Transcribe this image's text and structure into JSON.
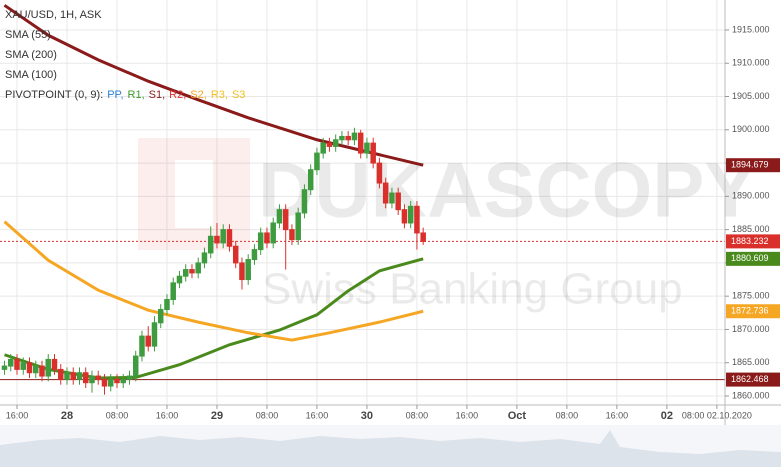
{
  "chart_data": {
    "type": "candlestick",
    "legend": {
      "instrument": "XAU/USD, 1H, ASK",
      "pivot_label": "PIVOTPOINT (0, 9):",
      "pivot_items": [
        {
          "text": "PP,",
          "color": "#2a7fd4"
        },
        {
          "text": "R1,",
          "color": "#3c9a2a"
        },
        {
          "text": "S1,",
          "color": "#8b1a1a"
        },
        {
          "text": "R2,",
          "color": "#e03030"
        },
        {
          "text": "S2,",
          "color": "#f5a623"
        },
        {
          "text": "R3,",
          "color": "#f0c020"
        },
        {
          "text": "S3",
          "color": "#f0c020"
        }
      ]
    },
    "watermark": {
      "brand": "DUKASCOPY",
      "tagline": "Swiss Banking Group"
    },
    "up_color": "#3f9b3f",
    "down_color": "#d9302c",
    "x": [
      -2,
      -1,
      0,
      1,
      2,
      3,
      4,
      5,
      6,
      7,
      8,
      9,
      10,
      11,
      12,
      13,
      14,
      15,
      16,
      17,
      18,
      19,
      20,
      21,
      22,
      23,
      24,
      25,
      26,
      27,
      28,
      29,
      30,
      31,
      32,
      33,
      34,
      35,
      36,
      37,
      38,
      39,
      40,
      41,
      42,
      43,
      44,
      45,
      46,
      47,
      48,
      49,
      50,
      51,
      52,
      53,
      54,
      55,
      56,
      57,
      58,
      59,
      60,
      61,
      62,
      63,
      64,
      65
    ],
    "open": [
      1864,
      1864.5,
      1865.5,
      1864,
      1865,
      1863.5,
      1864.5,
      1863,
      1865.5,
      1864,
      1862.5,
      1863.5,
      1862.5,
      1863.5,
      1862,
      1863,
      1862.5,
      1861.5,
      1862.5,
      1862,
      1862.5,
      1863,
      1866,
      1869,
      1867.5,
      1871,
      1873,
      1874.5,
      1877,
      1878,
      1879,
      1878.5,
      1880,
      1881.5,
      1884,
      1883,
      1885,
      1882.5,
      1880,
      1877.5,
      1880.5,
      1882,
      1884.5,
      1883,
      1886,
      1888,
      1885,
      1883.5,
      1887.5,
      1891,
      1894,
      1896.5,
      1898,
      1897.5,
      1898.5,
      1899,
      1898.5,
      1899.5,
      1896.5,
      1898,
      1895,
      1892,
      1889,
      1890.5,
      1888,
      1886,
      1888.5,
      1884.5
    ],
    "high": [
      1865.3,
      1866.3,
      1866.3,
      1865.8,
      1865.8,
      1865.3,
      1865.3,
      1866.3,
      1866.3,
      1864.8,
      1864.3,
      1864.3,
      1864.3,
      1864.3,
      1863.8,
      1863.8,
      1863.3,
      1863.3,
      1863.3,
      1863.3,
      1863.8,
      1866.8,
      1869.8,
      1870.5,
      1872,
      1873.8,
      1875.3,
      1877.8,
      1878.8,
      1879.8,
      1879.8,
      1880.8,
      1882.3,
      1885.5,
      1886,
      1885.8,
      1885.8,
      1883.3,
      1880.8,
      1881.3,
      1882.8,
      1885.3,
      1885.3,
      1886.8,
      1888.8,
      1888.8,
      1885.8,
      1888.3,
      1891.8,
      1894.8,
      1897.3,
      1898.8,
      1898.8,
      1899.3,
      1899.8,
      1899.8,
      1900.3,
      1900,
      1898.8,
      1898.8,
      1895.8,
      1892.8,
      1891.3,
      1891.3,
      1888.8,
      1889.3,
      1889.3,
      1885.3
    ],
    "low": [
      1863.2,
      1863.7,
      1863.2,
      1863.2,
      1862.7,
      1862.7,
      1862.2,
      1862.2,
      1863.2,
      1861.7,
      1861.7,
      1861.7,
      1861.7,
      1861.2,
      1860.5,
      1861.7,
      1860.2,
      1860.7,
      1861.2,
      1861.2,
      1861.7,
      1862.2,
      1865.2,
      1866.7,
      1866.7,
      1870.2,
      1872.2,
      1873.7,
      1876.2,
      1877.2,
      1877.7,
      1877.7,
      1879.2,
      1880.7,
      1882.2,
      1882.2,
      1881.7,
      1879.2,
      1876,
      1876.7,
      1879.7,
      1881.2,
      1882.2,
      1882.2,
      1885.2,
      1879,
      1882.7,
      1882.7,
      1886.7,
      1890.2,
      1893.2,
      1895.7,
      1896.7,
      1896.7,
      1897.7,
      1897.7,
      1897.7,
      1895.7,
      1895.7,
      1894.2,
      1891.2,
      1888.2,
      1888.2,
      1887.2,
      1885.2,
      1885.2,
      1882,
      1882.7
    ],
    "close": [
      1864.5,
      1865.5,
      1864,
      1865,
      1863.5,
      1864.5,
      1863,
      1865.5,
      1864,
      1862.5,
      1863.5,
      1862.5,
      1863.5,
      1862,
      1863,
      1862.5,
      1861.5,
      1862.5,
      1862,
      1862.5,
      1863,
      1866,
      1869,
      1867.5,
      1871,
      1873,
      1874.5,
      1877,
      1878,
      1879,
      1878.5,
      1880,
      1881.5,
      1884,
      1883,
      1885,
      1882.5,
      1880,
      1877.5,
      1880.5,
      1882,
      1884.5,
      1883,
      1886,
      1888,
      1885,
      1883.5,
      1887.5,
      1891,
      1894,
      1896.5,
      1898,
      1897.5,
      1898.5,
      1899,
      1898.5,
      1899.5,
      1896.5,
      1898,
      1895,
      1892,
      1889,
      1890.5,
      1888,
      1886,
      1888.5,
      1884.5,
      1883.232
    ],
    "series": [
      {
        "name": "SMA (55)",
        "color": "#4a8a1c",
        "x": [
          -2,
          5,
          13,
          19,
          26,
          34,
          42,
          48,
          53,
          58,
          65
        ],
        "values": [
          1866.2,
          1864.0,
          1862.7,
          1862.8,
          1864.7,
          1867.7,
          1869.9,
          1872.2,
          1875.8,
          1878.8,
          1880.609
        ]
      },
      {
        "name": "SMA (200)",
        "color": "#8b1a1a",
        "x": [
          -2,
          5,
          13,
          21,
          29,
          37,
          48,
          56,
          65
        ],
        "values": [
          1918.7,
          1914.2,
          1910.5,
          1907.3,
          1904.5,
          1901.8,
          1898.5,
          1896.7,
          1894.679
        ]
      },
      {
        "name": "SMA (100)",
        "color": "#f5a623",
        "x": [
          -2,
          5,
          13,
          21,
          29,
          37,
          44,
          50,
          58,
          65
        ],
        "values": [
          1886.2,
          1880.4,
          1875.9,
          1872.9,
          1871.1,
          1869.5,
          1868.4,
          1869.5,
          1871.1,
          1872.736
        ]
      }
    ],
    "hlines": [
      {
        "value": 1862.468,
        "color": "#8b1a1a"
      }
    ],
    "current_price_color": "#d9302c",
    "xlim": [
      -2.72,
      113.3
    ],
    "ylim": [
      1858.65,
      1919.5
    ],
    "xticks": [
      {
        "value": 0,
        "label": "16:00"
      },
      {
        "value": 8,
        "label": "28"
      },
      {
        "value": 16,
        "label": "08:00"
      },
      {
        "value": 24,
        "label": "16:00"
      },
      {
        "value": 32,
        "label": "29"
      },
      {
        "value": 40,
        "label": "08:00"
      },
      {
        "value": 48,
        "label": "16:00"
      },
      {
        "value": 56,
        "label": "30"
      },
      {
        "value": 64,
        "label": "08:00"
      },
      {
        "value": 72,
        "label": "16:00"
      },
      {
        "value": 80,
        "label": "Oct"
      },
      {
        "value": 88,
        "label": "08:00"
      },
      {
        "value": 96,
        "label": "16:00"
      },
      {
        "value": 104,
        "label": "02"
      },
      {
        "value": 112,
        "label": "08:00 02.10.2020"
      }
    ],
    "yticks": [
      {
        "value": 1860,
        "label": "1860.000"
      },
      {
        "value": 1865,
        "label": "1865.000"
      },
      {
        "value": 1870,
        "label": "1870.000"
      },
      {
        "value": 1875,
        "label": "1875.000"
      },
      {
        "value": 1880,
        "label": "1880.000"
      },
      {
        "value": 1885,
        "label": "1885.000"
      },
      {
        "value": 1890,
        "label": "1890.000"
      },
      {
        "value": 1895,
        "label": "1895.000"
      },
      {
        "value": 1900,
        "label": "1900.000"
      },
      {
        "value": 1905,
        "label": "1905.000"
      },
      {
        "value": 1910,
        "label": "1910.000"
      },
      {
        "value": 1915,
        "label": "1915.000"
      }
    ],
    "grid": true
  }
}
